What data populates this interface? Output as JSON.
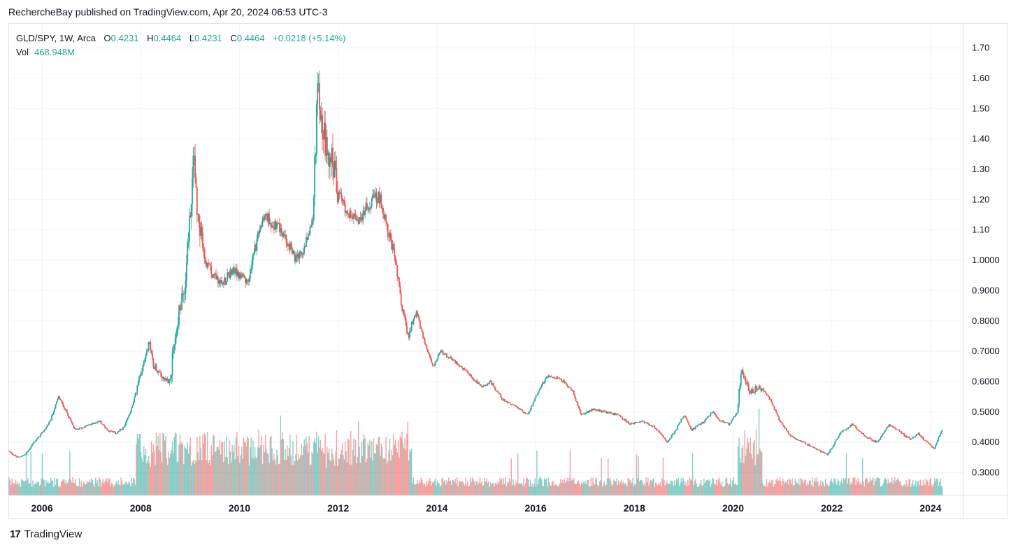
{
  "header": {
    "publisher_line": "RechercheBay published on TradingView.com, Apr 20, 2024 06:53 UTC-3"
  },
  "legend": {
    "symbol": "GLD/SPY, 1W, Arca",
    "open_label": "O",
    "open": "0.4231",
    "high_label": "H",
    "high": "0.4464",
    "low_label": "L",
    "low": "0.4231",
    "close_label": "C",
    "close": "0.4464",
    "change": "+0.0218 (+5.14%)",
    "vol_label": "Vol",
    "vol": "468.948M"
  },
  "footer": {
    "brand": "TradingView",
    "logo": "17"
  },
  "colors": {
    "up": "#26a69a",
    "down": "#ef5350",
    "grid": "#f0f3fa",
    "axis_text": "#131722"
  },
  "chart_data": {
    "type": "candlestick",
    "title": "GLD/SPY, 1W, Arca",
    "x_tick_labels": [
      "2006",
      "2008",
      "2010",
      "2012",
      "2014",
      "2016",
      "2018",
      "2020",
      "2022",
      "2024"
    ],
    "y_tick_labels": [
      "1.70",
      "1.60",
      "1.50",
      "1.40",
      "1.30",
      "1.20",
      "1.10",
      "1.0000",
      "0.9000",
      "0.8000",
      "0.7000",
      "0.6000",
      "0.5000",
      "0.4000",
      "0.3000"
    ],
    "ylim": [
      0.225,
      1.78
    ],
    "xlim": [
      "2005-05",
      "2024-09"
    ],
    "grid": true,
    "series": [
      {
        "name": "GLD/SPY close (approx. path)",
        "points": [
          [
            "2005-05",
            0.37
          ],
          [
            "2005-07",
            0.35
          ],
          [
            "2005-09",
            0.36
          ],
          [
            "2005-11",
            0.4
          ],
          [
            "2006-01",
            0.43
          ],
          [
            "2006-03",
            0.47
          ],
          [
            "2006-05",
            0.55
          ],
          [
            "2006-07",
            0.5
          ],
          [
            "2006-09",
            0.44
          ],
          [
            "2006-11",
            0.45
          ],
          [
            "2007-01",
            0.46
          ],
          [
            "2007-03",
            0.47
          ],
          [
            "2007-05",
            0.44
          ],
          [
            "2007-07",
            0.43
          ],
          [
            "2007-09",
            0.45
          ],
          [
            "2007-11",
            0.52
          ],
          [
            "2008-01",
            0.63
          ],
          [
            "2008-03",
            0.73
          ],
          [
            "2008-04",
            0.66
          ],
          [
            "2008-06",
            0.62
          ],
          [
            "2008-08",
            0.6
          ],
          [
            "2008-10",
            0.8
          ],
          [
            "2008-12",
            0.95
          ],
          [
            "2009-02",
            1.35
          ],
          [
            "2009-03",
            1.12
          ],
          [
            "2009-05",
            0.98
          ],
          [
            "2009-07",
            0.95
          ],
          [
            "2009-09",
            0.92
          ],
          [
            "2009-11",
            0.97
          ],
          [
            "2010-01",
            0.95
          ],
          [
            "2010-03",
            0.92
          ],
          [
            "2010-05",
            1.05
          ],
          [
            "2010-07",
            1.15
          ],
          [
            "2010-09",
            1.12
          ],
          [
            "2010-11",
            1.1
          ],
          [
            "2011-01",
            1.05
          ],
          [
            "2011-03",
            1.0
          ],
          [
            "2011-05",
            1.05
          ],
          [
            "2011-07",
            1.15
          ],
          [
            "2011-08",
            1.62
          ],
          [
            "2011-09",
            1.45
          ],
          [
            "2011-10",
            1.38
          ],
          [
            "2011-12",
            1.3
          ],
          [
            "2012-01",
            1.22
          ],
          [
            "2012-03",
            1.17
          ],
          [
            "2012-05",
            1.13
          ],
          [
            "2012-07",
            1.15
          ],
          [
            "2012-09",
            1.2
          ],
          [
            "2012-11",
            1.21
          ],
          [
            "2013-01",
            1.1
          ],
          [
            "2013-03",
            1.0
          ],
          [
            "2013-04",
            0.88
          ],
          [
            "2013-06",
            0.75
          ],
          [
            "2013-08",
            0.83
          ],
          [
            "2013-10",
            0.73
          ],
          [
            "2013-12",
            0.65
          ],
          [
            "2014-02",
            0.7
          ],
          [
            "2014-04",
            0.68
          ],
          [
            "2014-06",
            0.66
          ],
          [
            "2014-09",
            0.62
          ],
          [
            "2014-12",
            0.58
          ],
          [
            "2015-02",
            0.6
          ],
          [
            "2015-05",
            0.54
          ],
          [
            "2015-08",
            0.52
          ],
          [
            "2015-11",
            0.49
          ],
          [
            "2016-02",
            0.58
          ],
          [
            "2016-04",
            0.62
          ],
          [
            "2016-07",
            0.61
          ],
          [
            "2016-10",
            0.57
          ],
          [
            "2016-12",
            0.49
          ],
          [
            "2017-03",
            0.51
          ],
          [
            "2017-06",
            0.5
          ],
          [
            "2017-09",
            0.49
          ],
          [
            "2017-12",
            0.46
          ],
          [
            "2018-03",
            0.47
          ],
          [
            "2018-06",
            0.45
          ],
          [
            "2018-09",
            0.4
          ],
          [
            "2018-11",
            0.44
          ],
          [
            "2019-01",
            0.49
          ],
          [
            "2019-03",
            0.44
          ],
          [
            "2019-06",
            0.47
          ],
          [
            "2019-08",
            0.5
          ],
          [
            "2019-10",
            0.47
          ],
          [
            "2019-12",
            0.46
          ],
          [
            "2020-02",
            0.5
          ],
          [
            "2020-03",
            0.64
          ],
          [
            "2020-05",
            0.57
          ],
          [
            "2020-08",
            0.58
          ],
          [
            "2020-10",
            0.54
          ],
          [
            "2020-12",
            0.48
          ],
          [
            "2021-03",
            0.42
          ],
          [
            "2021-06",
            0.4
          ],
          [
            "2021-09",
            0.38
          ],
          [
            "2021-12",
            0.36
          ],
          [
            "2022-03",
            0.43
          ],
          [
            "2022-06",
            0.46
          ],
          [
            "2022-09",
            0.42
          ],
          [
            "2022-12",
            0.4
          ],
          [
            "2023-03",
            0.46
          ],
          [
            "2023-05",
            0.44
          ],
          [
            "2023-08",
            0.41
          ],
          [
            "2023-10",
            0.43
          ],
          [
            "2023-12",
            0.4
          ],
          [
            "2024-02",
            0.38
          ],
          [
            "2024-03",
            0.42
          ],
          [
            "2024-04",
            0.4464
          ]
        ]
      }
    ]
  }
}
